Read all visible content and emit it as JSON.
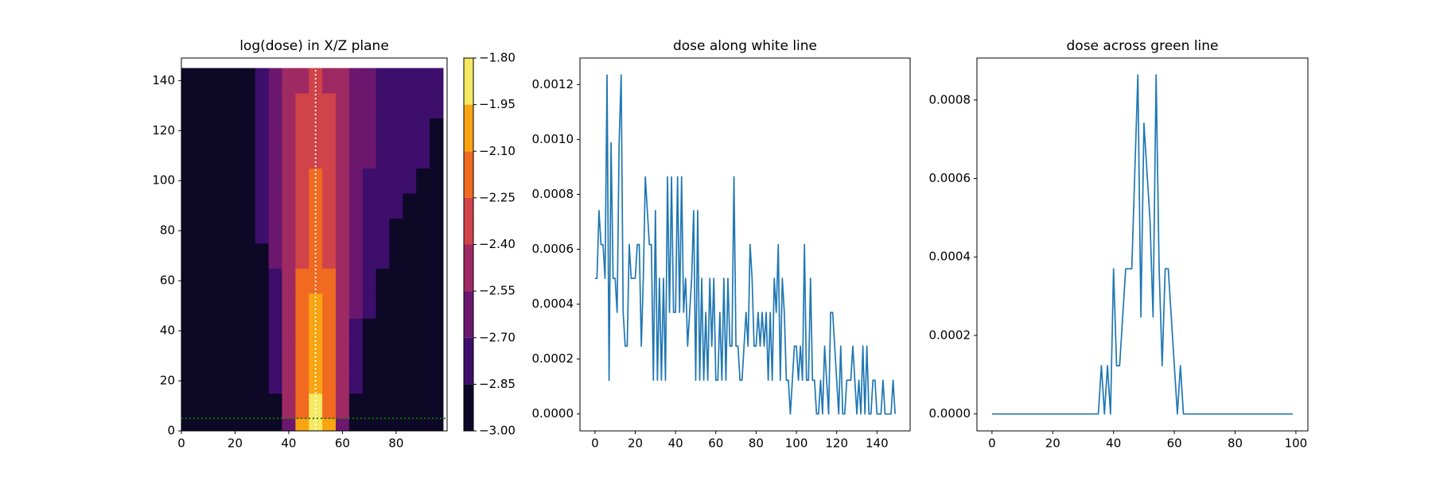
{
  "chart_data": [
    {
      "type": "contour",
      "title": "log(dose) in X/Z plane",
      "x": [
        0,
        5,
        10,
        15,
        20,
        25,
        30,
        35,
        40,
        45,
        50,
        55,
        60,
        65,
        70,
        75,
        80,
        85,
        90,
        95
      ],
      "y": [
        0,
        10,
        20,
        30,
        40,
        50,
        60,
        70,
        80,
        90,
        100,
        110,
        120,
        130,
        140
      ],
      "z": [
        [
          -3,
          -3,
          -3,
          -3,
          -3,
          -3,
          -3,
          -2.95,
          -2.6,
          -2.1,
          -1.85,
          -2.1,
          -2.6,
          -2.95,
          -3,
          -3,
          -3,
          -3,
          -3,
          -3
        ],
        [
          -3,
          -3,
          -3,
          -3,
          -3,
          -3,
          -3,
          -2.9,
          -2.5,
          -2.15,
          -1.9,
          -2.15,
          -2.5,
          -2.9,
          -3,
          -3,
          -3,
          -3,
          -3,
          -3
        ],
        [
          -3,
          -3,
          -3,
          -3,
          -3,
          -3,
          -3,
          -2.85,
          -2.45,
          -2.2,
          -2.0,
          -2.2,
          -2.45,
          -2.85,
          -3,
          -3,
          -3,
          -3,
          -3,
          -3
        ],
        [
          -3,
          -3,
          -3,
          -3,
          -3,
          -3,
          -3,
          -2.8,
          -2.45,
          -2.2,
          -2.0,
          -2.2,
          -2.45,
          -2.8,
          -2.95,
          -3,
          -3,
          -3,
          -3,
          -3
        ],
        [
          -3,
          -3,
          -3,
          -3,
          -3,
          -3,
          -2.95,
          -2.8,
          -2.45,
          -2.2,
          -2.05,
          -2.2,
          -2.45,
          -2.75,
          -2.9,
          -3,
          -3,
          -3,
          -3,
          -3
        ],
        [
          -3,
          -3,
          -3,
          -3,
          -3,
          -3,
          -2.95,
          -2.75,
          -2.5,
          -2.25,
          -2.1,
          -2.25,
          -2.5,
          -2.7,
          -2.85,
          -2.95,
          -3,
          -3,
          -3,
          -3
        ],
        [
          -3,
          -3,
          -3,
          -3,
          -3,
          -3,
          -2.9,
          -2.75,
          -2.5,
          -2.25,
          -2.15,
          -2.25,
          -2.5,
          -2.7,
          -2.8,
          -2.9,
          -2.95,
          -3,
          -3,
          -3
        ],
        [
          -3,
          -3,
          -3,
          -3,
          -3,
          -3,
          -2.9,
          -2.7,
          -2.55,
          -2.3,
          -2.2,
          -2.3,
          -2.5,
          -2.65,
          -2.8,
          -2.85,
          -2.9,
          -2.95,
          -3,
          -3
        ],
        [
          -3,
          -3,
          -3,
          -3,
          -3,
          -2.95,
          -2.85,
          -2.7,
          -2.55,
          -2.3,
          -2.2,
          -2.3,
          -2.5,
          -2.65,
          -2.75,
          -2.85,
          -2.9,
          -2.9,
          -2.95,
          -3
        ],
        [
          -3,
          -3,
          -3,
          -3,
          -3,
          -2.95,
          -2.85,
          -2.7,
          -2.55,
          -2.35,
          -2.25,
          -2.35,
          -2.55,
          -2.65,
          -2.75,
          -2.8,
          -2.85,
          -2.9,
          -2.9,
          -2.95
        ],
        [
          -3,
          -3,
          -3,
          -3,
          -3,
          -2.95,
          -2.85,
          -2.7,
          -2.55,
          -2.35,
          -2.25,
          -2.35,
          -2.55,
          -2.65,
          -2.75,
          -2.8,
          -2.85,
          -2.85,
          -2.9,
          -2.9
        ],
        [
          -3,
          -3,
          -3,
          -3,
          -3,
          -2.9,
          -2.8,
          -2.7,
          -2.55,
          -2.4,
          -2.3,
          -2.4,
          -2.55,
          -2.65,
          -2.7,
          -2.75,
          -2.8,
          -2.85,
          -2.85,
          -2.9
        ],
        [
          -3,
          -3,
          -3,
          -3,
          -3,
          -2.9,
          -2.8,
          -2.65,
          -2.55,
          -2.4,
          -2.3,
          -2.4,
          -2.55,
          -2.6,
          -2.7,
          -2.75,
          -2.8,
          -2.85,
          -2.85,
          -2.9
        ],
        [
          -3,
          -3,
          -3,
          -3,
          -3,
          -2.9,
          -2.8,
          -2.65,
          -2.55,
          -2.4,
          -2.35,
          -2.4,
          -2.55,
          -2.6,
          -2.7,
          -2.75,
          -2.8,
          -2.8,
          -2.85,
          -2.85
        ],
        [
          -3,
          -3,
          -3,
          -3,
          -2.95,
          -2.9,
          -2.75,
          -2.65,
          -2.55,
          -2.45,
          -2.35,
          -2.45,
          -2.55,
          -2.6,
          -2.7,
          -2.75,
          -2.75,
          -2.8,
          -2.85,
          -2.85
        ]
      ],
      "levels": [
        {
          "value": -3.0,
          "label": "−3.00"
        },
        {
          "value": -2.85,
          "label": "−2.85"
        },
        {
          "value": -2.7,
          "label": "−2.70"
        },
        {
          "value": -2.55,
          "label": "−2.55"
        },
        {
          "value": -2.4,
          "label": "−2.40"
        },
        {
          "value": -2.25,
          "label": "−2.25"
        },
        {
          "value": -2.1,
          "label": "−2.10"
        },
        {
          "value": -1.95,
          "label": "−1.95"
        },
        {
          "value": -1.8,
          "label": "−1.80"
        }
      ],
      "colors": [
        "#0c0826",
        "#3d0e6c",
        "#6c176e",
        "#9f2a63",
        "#d1434a",
        "#f06a20",
        "#f9a511",
        "#f4e961"
      ],
      "vline": {
        "x": 50,
        "color": "#ffffff"
      },
      "hline": {
        "y": 5,
        "color": "#008000"
      },
      "xlim": [
        0,
        99
      ],
      "ylim": [
        0,
        149
      ],
      "xticks": [
        0,
        20,
        40,
        60,
        80
      ],
      "yticks": [
        0,
        20,
        40,
        60,
        80,
        100,
        120,
        140
      ]
    },
    {
      "type": "line",
      "title": "dose along white line",
      "x": [
        0,
        1,
        2,
        3,
        4,
        5,
        6,
        7,
        8,
        9,
        10,
        11,
        12,
        13,
        14,
        15,
        16,
        17,
        18,
        19,
        20,
        21,
        22,
        23,
        24,
        25,
        26,
        27,
        28,
        29,
        30,
        31,
        32,
        33,
        34,
        35,
        36,
        37,
        38,
        39,
        40,
        41,
        42,
        43,
        44,
        45,
        46,
        47,
        48,
        49,
        50,
        51,
        52,
        53,
        54,
        55,
        56,
        57,
        58,
        59,
        60,
        61,
        62,
        63,
        64,
        65,
        66,
        67,
        68,
        69,
        70,
        71,
        72,
        73,
        74,
        75,
        76,
        77,
        78,
        79,
        80,
        81,
        82,
        83,
        84,
        85,
        86,
        87,
        88,
        89,
        90,
        91,
        92,
        93,
        94,
        95,
        96,
        97,
        98,
        99,
        100,
        101,
        102,
        103,
        104,
        105,
        106,
        107,
        108,
        109,
        110,
        111,
        112,
        113,
        114,
        115,
        116,
        117,
        118,
        119,
        120,
        121,
        122,
        123,
        124,
        125,
        126,
        127,
        128,
        129,
        130,
        131,
        132,
        133,
        134,
        135,
        136,
        137,
        138,
        139,
        140,
        141,
        142,
        143,
        144,
        145,
        146,
        147,
        148,
        149
      ],
      "series": [
        {
          "color": "#1f77b4",
          "values": [
            0.000494,
            0.000494,
            0.000741,
            0.000617,
            0.000617,
            0.000494,
            0.001235,
            0.000123,
            0.000988,
            0.000494,
            0.000494,
            0.00037,
            0.000988,
            0.001235,
            0.00037,
            0.000247,
            0.000247,
            0.000617,
            0.000494,
            0.000494,
            0.000494,
            0.000617,
            0.000617,
            0.000247,
            0.000494,
            0.000864,
            0.000741,
            0.000617,
            0.000617,
            0.000123,
            0.000741,
            0.000123,
            0.000494,
            0.000123,
            0.000494,
            0.000123,
            0.000864,
            0.00037,
            0.000864,
            0.00037,
            0.00037,
            0.000864,
            0.00037,
            0.000864,
            0.00037,
            0.000494,
            0.000247,
            0.00037,
            0.000494,
            0.000741,
            0.000123,
            0.000741,
            0.000123,
            0.000494,
            0.000123,
            0.00037,
            0.000123,
            0.000494,
            0.000247,
            0.000494,
            0.000123,
            0.000123,
            0.00037,
            0.000123,
            0.000494,
            0.000123,
            0.000494,
            0.000247,
            0.000247,
            0.000864,
            0.000247,
            0.000247,
            0.000123,
            0.000123,
            0.000247,
            0.00037,
            0.000247,
            0.000617,
            0.000494,
            0.000247,
            0.000247,
            0.00037,
            0.000247,
            0.00037,
            0.000247,
            0.00037,
            0.000123,
            0.00037,
            0.000123,
            0.000494,
            0.00037,
            0.000617,
            0.000123,
            0.000494,
            0.00037,
            0.000123,
            0.000123,
            0,
            0.000123,
            0.000247,
            0.000247,
            0.000123,
            0.000247,
            0.000123,
            0.000617,
            0.000123,
            0.000123,
            0.000494,
            0.000123,
            0.000123,
            0,
            0,
            0.000123,
            0,
            0.000247,
            0.000123,
            0,
            0.00037,
            0.00037,
            0.000247,
            0.000123,
            0,
            0.000247,
            0,
            0,
            0.000123,
            0.000123,
            0.000123,
            0.000247,
            0.000123,
            0,
            0.000123,
            0,
            0.000247,
            0,
            0.000247,
            0,
            0,
            0.000123,
            0.000123,
            0,
            0,
            0,
            0.000123,
            0,
            0,
            0,
            0,
            0.000123,
            0
          ]
        }
      ],
      "xlim": [
        -7.45,
        156.45
      ],
      "ylim": [
        -6.17e-05,
        0.0012966
      ],
      "xticks": [
        0,
        20,
        40,
        60,
        80,
        100,
        120,
        140
      ],
      "yticks": [
        {
          "value": 0,
          "label": "0.0000"
        },
        {
          "value": 0.0002,
          "label": "0.0002"
        },
        {
          "value": 0.0004,
          "label": "0.0004"
        },
        {
          "value": 0.0006,
          "label": "0.0006"
        },
        {
          "value": 0.0008,
          "label": "0.0008"
        },
        {
          "value": 0.001,
          "label": "0.0010"
        },
        {
          "value": 0.0012,
          "label": "0.0012"
        }
      ]
    },
    {
      "type": "line",
      "title": "dose across green line",
      "x": [
        0,
        1,
        2,
        3,
        4,
        5,
        6,
        7,
        8,
        9,
        10,
        11,
        12,
        13,
        14,
        15,
        16,
        17,
        18,
        19,
        20,
        21,
        22,
        23,
        24,
        25,
        26,
        27,
        28,
        29,
        30,
        31,
        32,
        33,
        34,
        35,
        36,
        37,
        38,
        39,
        40,
        41,
        42,
        43,
        44,
        45,
        46,
        47,
        48,
        49,
        50,
        51,
        52,
        53,
        54,
        55,
        56,
        57,
        58,
        59,
        60,
        61,
        62,
        63,
        64,
        65,
        66,
        67,
        68,
        69,
        70,
        71,
        72,
        73,
        74,
        75,
        76,
        77,
        78,
        79,
        80,
        81,
        82,
        83,
        84,
        85,
        86,
        87,
        88,
        89,
        90,
        91,
        92,
        93,
        94,
        95,
        96,
        97,
        98,
        99
      ],
      "series": [
        {
          "color": "#1f77b4",
          "values": [
            0,
            0,
            0,
            0,
            0,
            0,
            0,
            0,
            0,
            0,
            0,
            0,
            0,
            0,
            0,
            0,
            0,
            0,
            0,
            0,
            0,
            0,
            0,
            0,
            0,
            0,
            0,
            0,
            0,
            0,
            0,
            0,
            0,
            0,
            0,
            0,
            0.000123,
            0,
            0.000123,
            0,
            0.00037,
            0.000123,
            0.000123,
            0.000247,
            0.00037,
            0.00037,
            0.00037,
            0.000617,
            0.000864,
            0.000247,
            0.000741,
            0.000617,
            0.000494,
            0.000247,
            0.000864,
            0.00037,
            0.000123,
            0.00037,
            0.00037,
            0.000247,
            0.000123,
            0,
            0.000123,
            0,
            0,
            0,
            0,
            0,
            0,
            0,
            0,
            0,
            0,
            0,
            0,
            0,
            0,
            0,
            0,
            0,
            0,
            0,
            0,
            0,
            0,
            0,
            0,
            0,
            0,
            0,
            0,
            0,
            0,
            0,
            0,
            0,
            0,
            0,
            0,
            0
          ]
        }
      ],
      "xlim": [
        -4.95,
        103.95
      ],
      "ylim": [
        -4.32e-05,
        0.000907
      ],
      "xticks": [
        0,
        20,
        40,
        60,
        80,
        100
      ],
      "yticks": [
        {
          "value": 0,
          "label": "0.0000"
        },
        {
          "value": 0.0002,
          "label": "0.0002"
        },
        {
          "value": 0.0004,
          "label": "0.0004"
        },
        {
          "value": 0.0006,
          "label": "0.0006"
        },
        {
          "value": 0.0008,
          "label": "0.0008"
        }
      ]
    }
  ]
}
